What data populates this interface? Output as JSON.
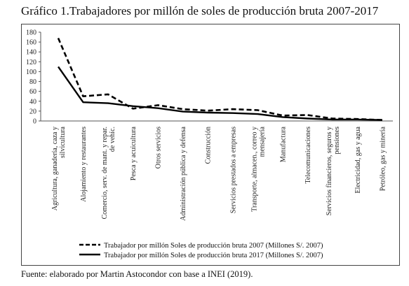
{
  "title": "Gráfico 1.Trabajadores por millón de soles de producción bruta 2007-2017",
  "source": "Fuente: elaborado por Martin Astocondor con base a INEI (2019).",
  "chart_data": {
    "type": "line",
    "categories": [
      [
        "Agricultura, ganadería, caza y",
        "silvicultura"
      ],
      [
        "Alojamiento y restaurantes"
      ],
      [
        "Comercio, serv. de mant. y repar.",
        "de vehíc."
      ],
      [
        "Pesca y acuicultura"
      ],
      [
        "Otros servicios"
      ],
      [
        "Administración pública y defensa"
      ],
      [
        "Construcción"
      ],
      [
        "Servicios prestados a empresas"
      ],
      [
        "Transporte, almacen., correo y",
        "mensajería"
      ],
      [
        "Manufactura"
      ],
      [
        "Telecomunicaciones"
      ],
      [
        "Servicios financieros, seguros y",
        "pensiones"
      ],
      [
        "Electricidad, gas y agua"
      ],
      [
        "Petróleo, gas y minería"
      ]
    ],
    "yticks": [
      "0",
      "20",
      "40",
      "60",
      "80",
      "100",
      "120",
      "140",
      "160",
      "180"
    ],
    "ylim": [
      0,
      180
    ],
    "series": [
      {
        "name": "Trabajador por millón Soles de producción bruta 2007 (Millones S/. 2007)",
        "style": "dashed",
        "color": "#000000",
        "values": [
          168,
          50,
          54,
          25,
          32,
          24,
          21,
          24,
          22,
          11,
          12,
          5,
          4,
          2
        ]
      },
      {
        "name": "Trabajador por millón Soles de producción bruta 2017 (Millones S/. 2007)",
        "style": "solid",
        "color": "#000000",
        "values": [
          110,
          38,
          36,
          30,
          26,
          19,
          17,
          16,
          14,
          8,
          5,
          3,
          3,
          2
        ]
      }
    ],
    "grid": false,
    "legend": "bottom"
  }
}
